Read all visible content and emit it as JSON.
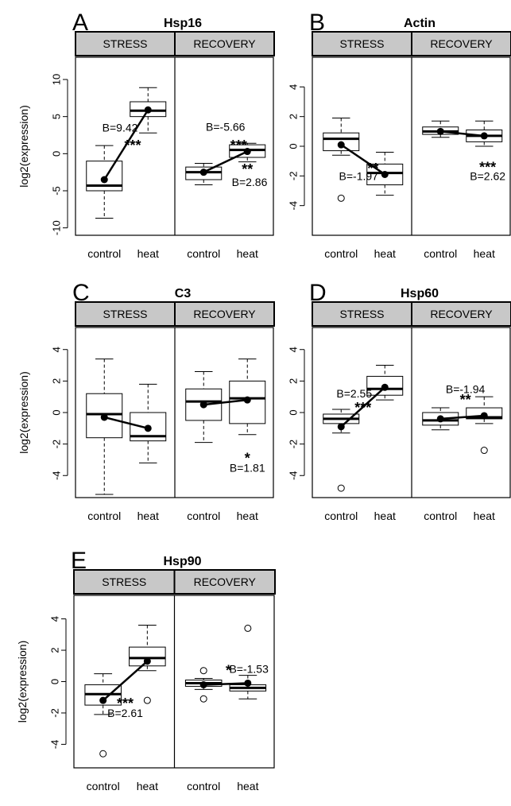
{
  "figure": {
    "colors": {
      "strip": "#c8c8c8",
      "axis": "#000000",
      "box_fill": "#ffffff",
      "mean": "#000000"
    }
  },
  "chart_data": [
    {
      "type": "box",
      "letter": "A",
      "title": "Hsp16",
      "ylabel": "log2(expression)",
      "ylim": [
        -11,
        13
      ],
      "yticks": [
        -10,
        -5,
        0,
        5,
        10
      ],
      "facets": [
        "STRESS",
        "RECOVERY"
      ],
      "categories": [
        "control",
        "heat"
      ],
      "groups": [
        {
          "facet": "STRESS",
          "category": "control",
          "min": -8.7,
          "q1": -5,
          "median": -4.3,
          "q3": -1,
          "max": 1.1,
          "mean": -3.5,
          "outliers": []
        },
        {
          "facet": "STRESS",
          "category": "heat",
          "min": 2.8,
          "q1": 5,
          "median": 5.8,
          "q3": 7,
          "max": 8.9,
          "mean": 5.9,
          "outliers": []
        },
        {
          "facet": "RECOVERY",
          "category": "control",
          "min": -4.2,
          "q1": -3.5,
          "median": -2.5,
          "q3": -1.8,
          "max": -1.3,
          "mean": -2.5,
          "outliers": []
        },
        {
          "facet": "RECOVERY",
          "category": "heat",
          "min": -1.1,
          "q1": -0.5,
          "median": 0.5,
          "q3": 1.2,
          "max": 1.4,
          "mean": 0.3,
          "outliers": []
        }
      ],
      "annotations": [
        {
          "text": "B=9.42",
          "facet": 0,
          "cat": 0.86,
          "y": 3.5,
          "anchor": "middle"
        },
        {
          "text": "***",
          "facet": 0,
          "cat": 1.15,
          "y": 1.3,
          "anchor": "middle"
        },
        {
          "text": "B=-5.66",
          "facet": 1,
          "cat": 1.0,
          "y": 3.6,
          "anchor": "middle"
        },
        {
          "text": "***",
          "facet": 1,
          "cat": 1.3,
          "y": 1.3,
          "anchor": "middle"
        },
        {
          "text": "**",
          "facet": 1,
          "cat": 1.5,
          "y": -1.9,
          "anchor": "middle"
        },
        {
          "text": "B=2.86",
          "facet": 1,
          "cat": 1.55,
          "y": -3.8,
          "anchor": "middle"
        }
      ]
    },
    {
      "type": "box",
      "letter": "B",
      "title": "Actin",
      "ylabel": "",
      "ylim": [
        -6,
        6
      ],
      "yticks": [
        -4,
        -2,
        0,
        2,
        4
      ],
      "facets": [
        "STRESS",
        "RECOVERY"
      ],
      "categories": [
        "control",
        "heat"
      ],
      "groups": [
        {
          "facet": "STRESS",
          "category": "control",
          "min": -0.6,
          "q1": -0.3,
          "median": 0.5,
          "q3": 0.9,
          "max": 1.9,
          "mean": 0.1,
          "outliers": [
            -3.5
          ]
        },
        {
          "facet": "STRESS",
          "category": "heat",
          "min": -3.3,
          "q1": -2.6,
          "median": -1.8,
          "q3": -1.2,
          "max": -0.4,
          "mean": -1.9,
          "outliers": []
        },
        {
          "facet": "RECOVERY",
          "category": "control",
          "min": 0.6,
          "q1": 0.8,
          "median": 1.0,
          "q3": 1.3,
          "max": 1.7,
          "mean": 1.0,
          "outliers": []
        },
        {
          "facet": "RECOVERY",
          "category": "heat",
          "min": 0.0,
          "q1": 0.3,
          "median": 0.7,
          "q3": 1.1,
          "max": 1.7,
          "mean": 0.7,
          "outliers": []
        }
      ],
      "annotations": [
        {
          "text": "**",
          "facet": 0,
          "cat": 1.23,
          "y": -1.4,
          "anchor": "middle"
        },
        {
          "text": "B=-1.97",
          "facet": 0,
          "cat": 0.9,
          "y": -2.0,
          "anchor": "middle"
        },
        {
          "text": "***",
          "facet": 1,
          "cat": 1.58,
          "y": -1.3,
          "anchor": "middle"
        },
        {
          "text": "B=2.62",
          "facet": 1,
          "cat": 1.58,
          "y": -2.0,
          "anchor": "middle"
        }
      ]
    },
    {
      "type": "box",
      "letter": "C",
      "title": "C3",
      "ylabel": "log2(expression)",
      "ylim": [
        -5.4,
        5.4
      ],
      "yticks": [
        -4,
        -2,
        0,
        2,
        4
      ],
      "facets": [
        "STRESS",
        "RECOVERY"
      ],
      "categories": [
        "control",
        "heat"
      ],
      "groups": [
        {
          "facet": "STRESS",
          "category": "control",
          "min": -5.2,
          "q1": -1.6,
          "median": -0.1,
          "q3": 1.2,
          "max": 3.4,
          "mean": -0.3,
          "outliers": []
        },
        {
          "facet": "STRESS",
          "category": "heat",
          "min": -3.2,
          "q1": -1.8,
          "median": -1.5,
          "q3": 0.0,
          "max": 1.8,
          "mean": -1.0,
          "outliers": []
        },
        {
          "facet": "RECOVERY",
          "category": "control",
          "min": -1.9,
          "q1": -0.5,
          "median": 0.7,
          "q3": 1.5,
          "max": 2.6,
          "mean": 0.5,
          "outliers": []
        },
        {
          "facet": "RECOVERY",
          "category": "heat",
          "min": -1.4,
          "q1": -0.7,
          "median": 0.9,
          "q3": 2.0,
          "max": 3.4,
          "mean": 0.8,
          "outliers": []
        }
      ],
      "annotations": [
        {
          "text": "*",
          "facet": 1,
          "cat": 1.5,
          "y": -2.8,
          "anchor": "middle"
        },
        {
          "text": "B=1.81",
          "facet": 1,
          "cat": 1.5,
          "y": -3.5,
          "anchor": "middle"
        }
      ]
    },
    {
      "type": "box",
      "letter": "D",
      "title": "Hsp60",
      "ylabel": "",
      "ylim": [
        -5.4,
        5.4
      ],
      "yticks": [
        -4,
        -2,
        0,
        2,
        4
      ],
      "facets": [
        "STRESS",
        "RECOVERY"
      ],
      "categories": [
        "control",
        "heat"
      ],
      "groups": [
        {
          "facet": "STRESS",
          "category": "control",
          "min": -1.3,
          "q1": -0.7,
          "median": -0.4,
          "q3": -0.1,
          "max": 0.2,
          "mean": -0.9,
          "outliers": [
            -4.8
          ]
        },
        {
          "facet": "STRESS",
          "category": "heat",
          "min": 0.8,
          "q1": 1.1,
          "median": 1.5,
          "q3": 2.3,
          "max": 3.0,
          "mean": 1.6,
          "outliers": []
        },
        {
          "facet": "RECOVERY",
          "category": "control",
          "min": -1.1,
          "q1": -0.8,
          "median": -0.5,
          "q3": 0.0,
          "max": 0.3,
          "mean": -0.4,
          "outliers": []
        },
        {
          "facet": "RECOVERY",
          "category": "heat",
          "min": -0.7,
          "q1": -0.4,
          "median": -0.3,
          "q3": 0.3,
          "max": 1.0,
          "mean": -0.2,
          "outliers": [
            -2.4
          ]
        }
      ],
      "annotations": [
        {
          "text": "B=2.55",
          "facet": 0,
          "cat": 0.8,
          "y": 1.2,
          "anchor": "middle"
        },
        {
          "text": "***",
          "facet": 0,
          "cat": 1.0,
          "y": 0.4,
          "anchor": "middle"
        },
        {
          "text": "B=-1.94",
          "facet": 1,
          "cat": 1.07,
          "y": 1.5,
          "anchor": "middle"
        },
        {
          "text": "**",
          "facet": 1,
          "cat": 1.07,
          "y": 0.9,
          "anchor": "middle"
        }
      ]
    },
    {
      "type": "box",
      "letter": "E",
      "title": "Hsp90",
      "ylabel": "log2(expression)",
      "ylim": [
        -5.5,
        5.5
      ],
      "yticks": [
        -4,
        -2,
        0,
        2,
        4
      ],
      "facets": [
        "STRESS",
        "RECOVERY"
      ],
      "categories": [
        "control",
        "heat"
      ],
      "groups": [
        {
          "facet": "STRESS",
          "category": "control",
          "min": -2.1,
          "q1": -1.5,
          "median": -0.8,
          "q3": -0.2,
          "max": 0.5,
          "mean": -1.2,
          "outliers": [
            -4.6
          ]
        },
        {
          "facet": "STRESS",
          "category": "heat",
          "min": 0.7,
          "q1": 1.0,
          "median": 1.5,
          "q3": 2.2,
          "max": 3.6,
          "mean": 1.3,
          "outliers": [
            -1.2
          ]
        },
        {
          "facet": "RECOVERY",
          "category": "control",
          "min": -0.5,
          "q1": -0.3,
          "median": -0.1,
          "q3": 0.1,
          "max": 0.2,
          "mean": -0.2,
          "outliers": [
            0.7,
            -1.1
          ]
        },
        {
          "facet": "RECOVERY",
          "category": "heat",
          "min": -1.1,
          "q1": -0.6,
          "median": -0.4,
          "q3": -0.2,
          "max": 0.4,
          "mean": -0.1,
          "outliers": [
            3.4
          ]
        }
      ],
      "annotations": [
        {
          "text": "***",
          "facet": 0,
          "cat": 1.0,
          "y": -1.3,
          "anchor": "middle"
        },
        {
          "text": "B=2.61",
          "facet": 0,
          "cat": 1.0,
          "y": -2.0,
          "anchor": "middle"
        },
        {
          "text": "*",
          "facet": 1,
          "cat": 1.0,
          "y": 0.8,
          "anchor": "start"
        },
        {
          "text": "B=-1.53",
          "facet": 1,
          "cat": 1.08,
          "y": 0.8,
          "anchor": "start"
        }
      ]
    }
  ]
}
